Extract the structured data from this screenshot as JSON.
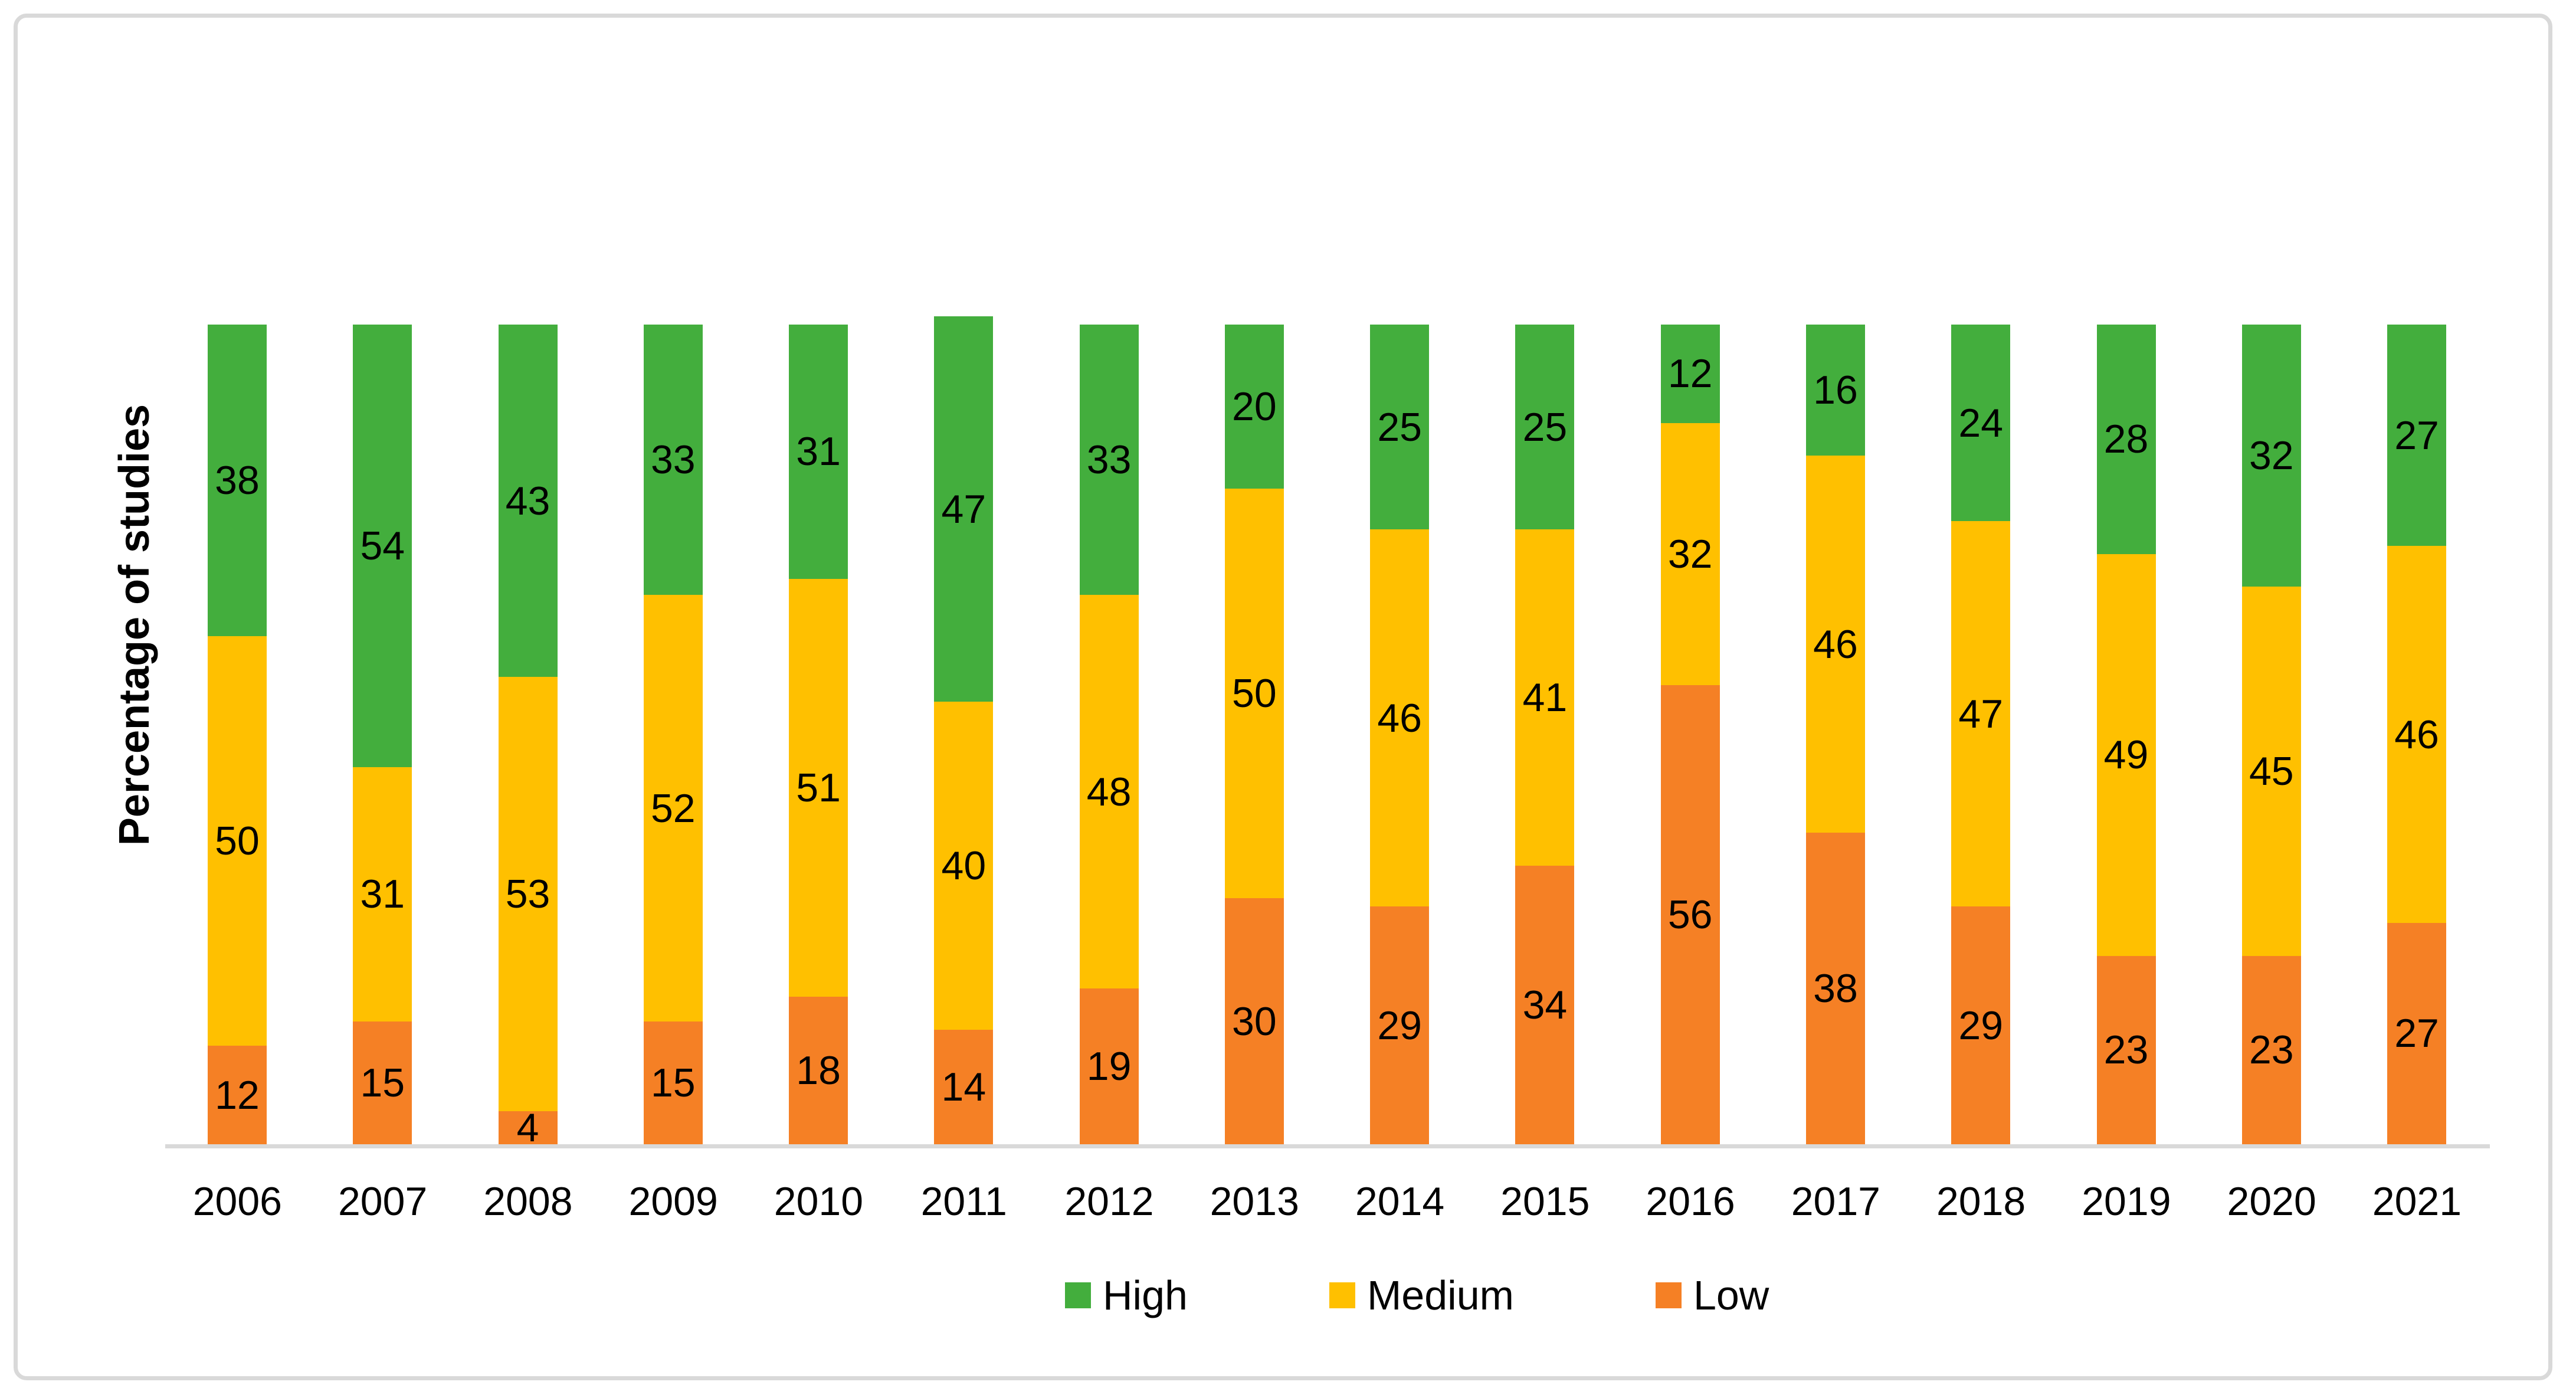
{
  "figure": {
    "ylabel": "Percentage of studies"
  },
  "legend": [
    {
      "label": "High",
      "color": "#43ae3d"
    },
    {
      "label": "Medium",
      "color": "#ffc000"
    },
    {
      "label": "Low",
      "color": "#f58025"
    }
  ],
  "chart_data": {
    "type": "bar",
    "stacked": true,
    "title": "",
    "xlabel": "",
    "ylabel": "Percentage of studies",
    "ylim": [
      0,
      100
    ],
    "grid": false,
    "y_axis_ticks_visible": false,
    "value_labels": "center",
    "legend_position": "bottom",
    "axis_line_color": "#d9d9d9",
    "categories": [
      "2006",
      "2007",
      "2008",
      "2009",
      "2010",
      "2011",
      "2012",
      "2013",
      "2014",
      "2015",
      "2016",
      "2017",
      "2018",
      "2019",
      "2020",
      "2021"
    ],
    "series": [
      {
        "name": "High",
        "color": "#43ae3d",
        "values": [
          38,
          54,
          43,
          33,
          31,
          47,
          33,
          20,
          25,
          25,
          12,
          16,
          24,
          28,
          32,
          27
        ]
      },
      {
        "name": "Medium",
        "color": "#ffc000",
        "values": [
          50,
          31,
          53,
          52,
          51,
          40,
          48,
          50,
          46,
          41,
          32,
          46,
          47,
          49,
          45,
          46
        ]
      },
      {
        "name": "Low",
        "color": "#f58025",
        "values": [
          12,
          15,
          4,
          15,
          18,
          14,
          19,
          30,
          29,
          34,
          56,
          38,
          29,
          23,
          23,
          27
        ]
      }
    ]
  }
}
